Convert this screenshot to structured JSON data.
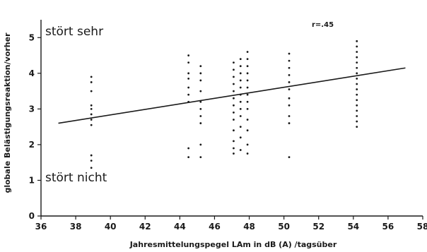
{
  "chart_data": {
    "type": "scatter",
    "title": "",
    "xlabel": "Jahresmittelungspegel LAm in dB (A) /tagsüber",
    "ylabel": "globale Belästigungsreaktion/vorher",
    "xlim": [
      36,
      58
    ],
    "ylim": [
      0,
      5.5
    ],
    "x_ticks": [
      "36",
      "38",
      "40",
      "42",
      "44",
      "46",
      "48",
      "50",
      "52",
      "54",
      "56",
      "58"
    ],
    "y_ticks": [
      "0",
      "1",
      "2",
      "3",
      "4",
      "5"
    ],
    "annotations": {
      "top": "stört sehr",
      "bottom": "stört nicht",
      "correlation": "r=.45"
    },
    "regression_line": {
      "x": [
        37,
        57
      ],
      "y": [
        2.6,
        4.15
      ]
    },
    "grid": false,
    "points": [
      {
        "x": 38.9,
        "y": 3.9
      },
      {
        "x": 38.9,
        "y": 3.75
      },
      {
        "x": 38.9,
        "y": 3.5
      },
      {
        "x": 38.9,
        "y": 3.1
      },
      {
        "x": 38.9,
        "y": 3.0
      },
      {
        "x": 38.9,
        "y": 2.85
      },
      {
        "x": 38.9,
        "y": 2.7
      },
      {
        "x": 38.9,
        "y": 2.55
      },
      {
        "x": 38.9,
        "y": 1.7
      },
      {
        "x": 38.9,
        "y": 1.55
      },
      {
        "x": 38.9,
        "y": 1.35
      },
      {
        "x": 44.5,
        "y": 4.5
      },
      {
        "x": 44.5,
        "y": 4.3
      },
      {
        "x": 44.5,
        "y": 4.0
      },
      {
        "x": 44.5,
        "y": 3.85
      },
      {
        "x": 44.5,
        "y": 3.6
      },
      {
        "x": 44.5,
        "y": 3.4
      },
      {
        "x": 44.5,
        "y": 3.2
      },
      {
        "x": 44.5,
        "y": 1.9
      },
      {
        "x": 44.5,
        "y": 1.65
      },
      {
        "x": 45.2,
        "y": 4.2
      },
      {
        "x": 45.2,
        "y": 4.0
      },
      {
        "x": 45.2,
        "y": 3.8
      },
      {
        "x": 45.2,
        "y": 3.5
      },
      {
        "x": 45.2,
        "y": 3.2
      },
      {
        "x": 45.2,
        "y": 3.0
      },
      {
        "x": 45.2,
        "y": 2.8
      },
      {
        "x": 45.2,
        "y": 2.6
      },
      {
        "x": 45.2,
        "y": 2.0
      },
      {
        "x": 45.2,
        "y": 1.65
      },
      {
        "x": 47.1,
        "y": 4.3
      },
      {
        "x": 47.1,
        "y": 4.1
      },
      {
        "x": 47.1,
        "y": 3.9
      },
      {
        "x": 47.1,
        "y": 3.7
      },
      {
        "x": 47.1,
        "y": 3.5
      },
      {
        "x": 47.1,
        "y": 3.3
      },
      {
        "x": 47.1,
        "y": 3.1
      },
      {
        "x": 47.1,
        "y": 2.9
      },
      {
        "x": 47.1,
        "y": 2.7
      },
      {
        "x": 47.1,
        "y": 2.4
      },
      {
        "x": 47.1,
        "y": 2.1
      },
      {
        "x": 47.1,
        "y": 1.9
      },
      {
        "x": 47.1,
        "y": 1.75
      },
      {
        "x": 47.5,
        "y": 4.4
      },
      {
        "x": 47.5,
        "y": 4.2
      },
      {
        "x": 47.5,
        "y": 4.0
      },
      {
        "x": 47.5,
        "y": 3.8
      },
      {
        "x": 47.5,
        "y": 3.6
      },
      {
        "x": 47.5,
        "y": 3.4
      },
      {
        "x": 47.5,
        "y": 3.2
      },
      {
        "x": 47.5,
        "y": 3.0
      },
      {
        "x": 47.5,
        "y": 2.8
      },
      {
        "x": 47.5,
        "y": 2.5
      },
      {
        "x": 47.5,
        "y": 2.2
      },
      {
        "x": 47.5,
        "y": 1.85
      },
      {
        "x": 47.9,
        "y": 4.6
      },
      {
        "x": 47.9,
        "y": 4.4
      },
      {
        "x": 47.9,
        "y": 4.2
      },
      {
        "x": 47.9,
        "y": 4.0
      },
      {
        "x": 47.9,
        "y": 3.8
      },
      {
        "x": 47.9,
        "y": 3.6
      },
      {
        "x": 47.9,
        "y": 3.4
      },
      {
        "x": 47.9,
        "y": 3.2
      },
      {
        "x": 47.9,
        "y": 3.0
      },
      {
        "x": 47.9,
        "y": 2.7
      },
      {
        "x": 47.9,
        "y": 2.4
      },
      {
        "x": 47.9,
        "y": 2.0
      },
      {
        "x": 47.9,
        "y": 1.75
      },
      {
        "x": 50.3,
        "y": 4.55
      },
      {
        "x": 50.3,
        "y": 4.35
      },
      {
        "x": 50.3,
        "y": 4.15
      },
      {
        "x": 50.3,
        "y": 3.95
      },
      {
        "x": 50.3,
        "y": 3.75
      },
      {
        "x": 50.3,
        "y": 3.55
      },
      {
        "x": 50.3,
        "y": 3.3
      },
      {
        "x": 50.3,
        "y": 3.1
      },
      {
        "x": 50.3,
        "y": 2.8
      },
      {
        "x": 50.3,
        "y": 2.6
      },
      {
        "x": 50.3,
        "y": 1.65
      },
      {
        "x": 54.2,
        "y": 4.9
      },
      {
        "x": 54.2,
        "y": 4.75
      },
      {
        "x": 54.2,
        "y": 4.6
      },
      {
        "x": 54.2,
        "y": 4.45
      },
      {
        "x": 54.2,
        "y": 4.3
      },
      {
        "x": 54.2,
        "y": 4.15
      },
      {
        "x": 54.2,
        "y": 4.0
      },
      {
        "x": 54.2,
        "y": 3.85
      },
      {
        "x": 54.2,
        "y": 3.7
      },
      {
        "x": 54.2,
        "y": 3.55
      },
      {
        "x": 54.2,
        "y": 3.4
      },
      {
        "x": 54.2,
        "y": 3.25
      },
      {
        "x": 54.2,
        "y": 3.1
      },
      {
        "x": 54.2,
        "y": 2.95
      },
      {
        "x": 54.2,
        "y": 2.8
      },
      {
        "x": 54.2,
        "y": 2.65
      },
      {
        "x": 54.2,
        "y": 2.5
      }
    ]
  }
}
